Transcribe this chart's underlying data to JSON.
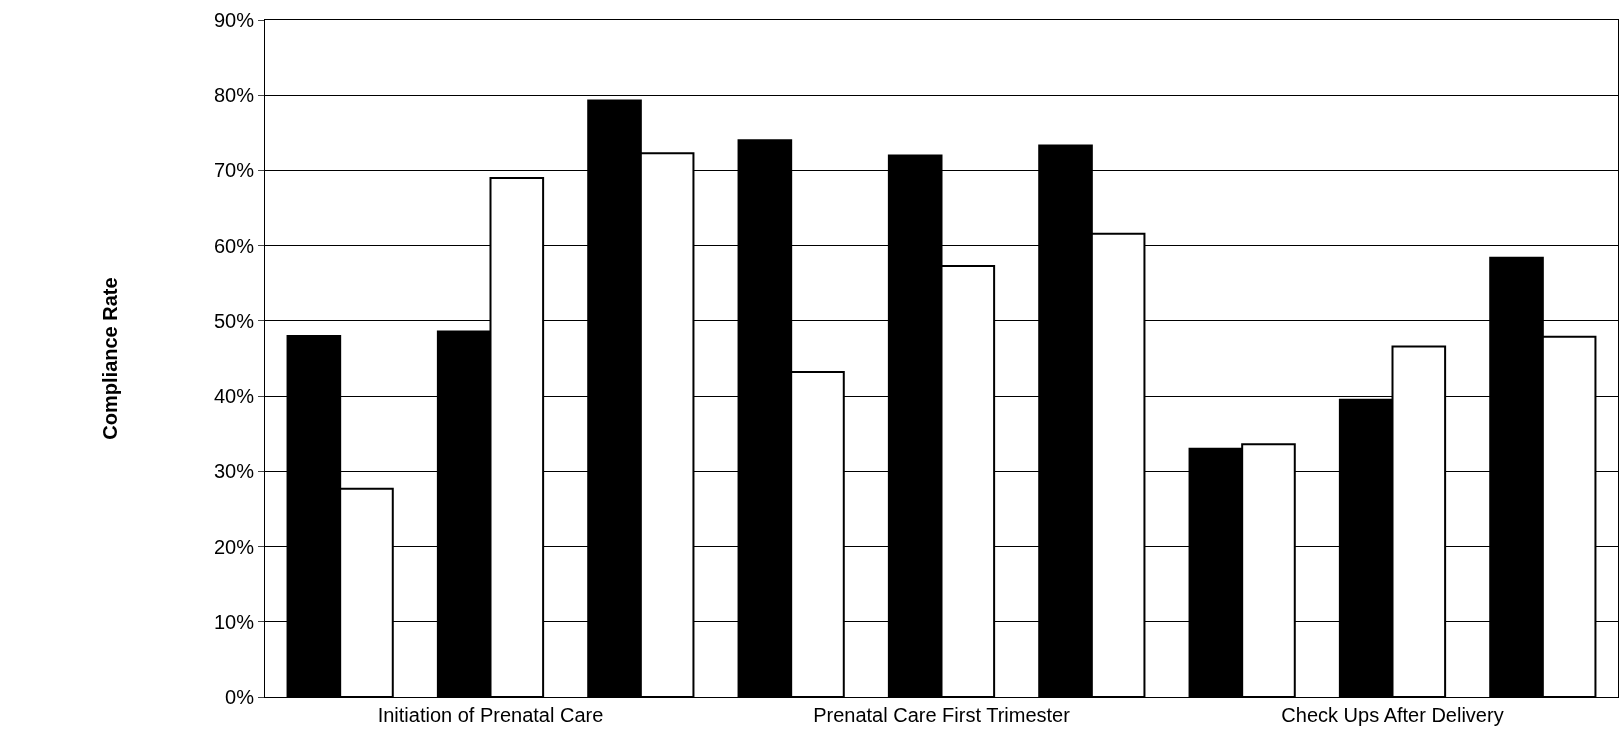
{
  "chart_data": {
    "type": "bar",
    "ylabel": "Compliance Rate",
    "categories": [
      null,
      "Initiation of Prenatal Care",
      null,
      null,
      "Prenatal Care First Trimester",
      null,
      null,
      "Check Ups After Delivery",
      null
    ],
    "series": [
      {
        "color": "#000000",
        "values": [
          48,
          48.6,
          79.3,
          74,
          72,
          73.3,
          33,
          39.5,
          58.4
        ]
      },
      {
        "color": "#ffffff",
        "values": [
          27.7,
          69,
          72.3,
          43.2,
          57.3,
          61.6,
          33.6,
          46.6,
          47.9
        ]
      }
    ],
    "ylim": [
      0,
      90
    ],
    "yticks": [
      {
        "value": 0,
        "label": "0%"
      },
      {
        "value": 10,
        "label": "10%"
      },
      {
        "value": 20,
        "label": "20%"
      },
      {
        "value": 30,
        "label": "30%"
      },
      {
        "value": 40,
        "label": "40%"
      },
      {
        "value": 50,
        "label": "50%"
      },
      {
        "value": 60,
        "label": "60%"
      },
      {
        "value": 70,
        "label": "70%"
      },
      {
        "value": 80,
        "label": "80%"
      },
      {
        "value": 90,
        "label": "90%"
      }
    ],
    "grid": "y"
  }
}
